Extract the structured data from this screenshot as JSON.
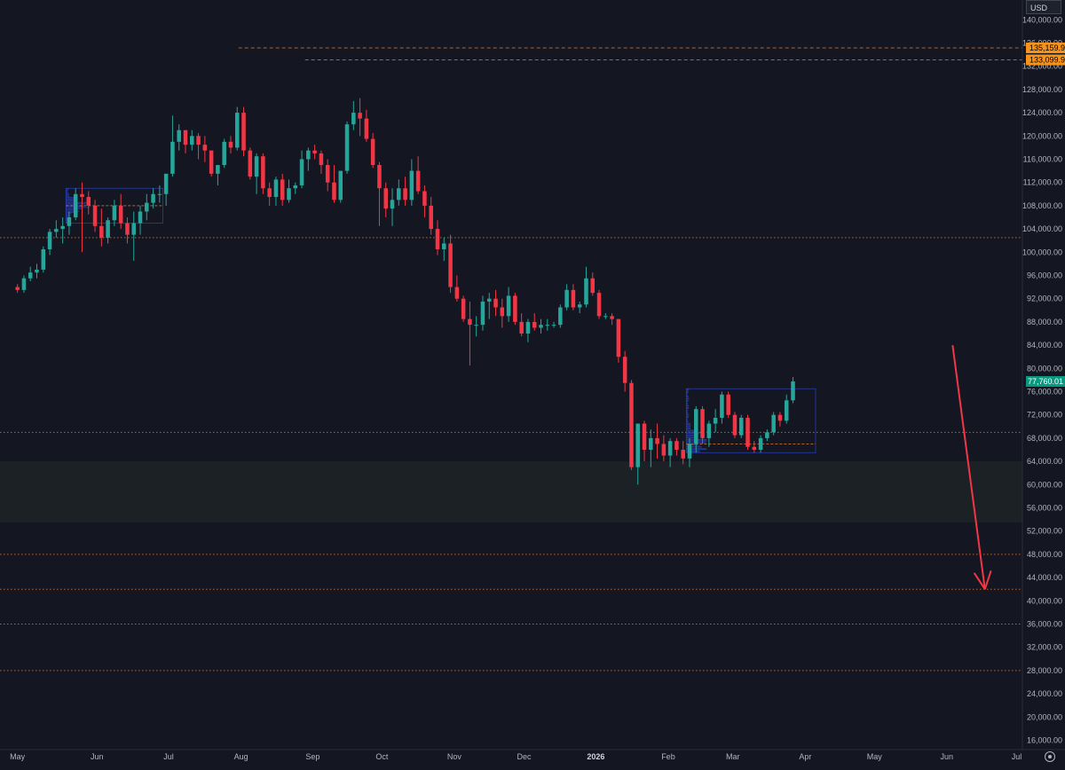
{
  "currency": "USD",
  "colors": {
    "background": "#141722",
    "up": "#26a69a",
    "down": "#f23645",
    "level": "#d3753a",
    "profile": "#2a3fbf",
    "arrow": "#f23645",
    "zone": "#1b2125",
    "price_tag": "#089981",
    "alert_tag": "#f7931a"
  },
  "icons": [
    "settings-icon",
    "down-arrow-icon"
  ],
  "chart_data": {
    "type": "candlestick",
    "grid": false,
    "y_range": [
      14400,
      143400
    ],
    "y_ticks": [
      {
        "v": 140000,
        "label": "140,000.00"
      },
      {
        "v": 136000,
        "label": "136,000.00"
      },
      {
        "v": 132000,
        "label": "132,000.00"
      },
      {
        "v": 128000,
        "label": "128,000.00"
      },
      {
        "v": 124000,
        "label": "124,000.00"
      },
      {
        "v": 120000,
        "label": "120,000.00"
      },
      {
        "v": 116000,
        "label": "116,000.00"
      },
      {
        "v": 112000,
        "label": "112,000.00"
      },
      {
        "v": 108000,
        "label": "108,000.00"
      },
      {
        "v": 104000,
        "label": "104,000.00"
      },
      {
        "v": 100000,
        "label": "100,000.00"
      },
      {
        "v": 96000,
        "label": "96,000.00"
      },
      {
        "v": 92000,
        "label": "92,000.00"
      },
      {
        "v": 88000,
        "label": "88,000.00"
      },
      {
        "v": 84000,
        "label": "84,000.00"
      },
      {
        "v": 80000,
        "label": "80,000.00"
      },
      {
        "v": 76000,
        "label": "76,000.00"
      },
      {
        "v": 72000,
        "label": "72,000.00"
      },
      {
        "v": 68000,
        "label": "68,000.00"
      },
      {
        "v": 64000,
        "label": "64,000.00"
      },
      {
        "v": 60000,
        "label": "60,000.00"
      },
      {
        "v": 56000,
        "label": "56,000.00"
      },
      {
        "v": 52000,
        "label": "52,000.00"
      },
      {
        "v": 48000,
        "label": "48,000.00"
      },
      {
        "v": 44000,
        "label": "44,000.00"
      },
      {
        "v": 40000,
        "label": "40,000.00"
      },
      {
        "v": 36000,
        "label": "36,000.00"
      },
      {
        "v": 32000,
        "label": "32,000.00"
      },
      {
        "v": 28000,
        "label": "28,000.00"
      },
      {
        "v": 24000,
        "label": "24,000.00"
      },
      {
        "v": 20000,
        "label": "20,000.00"
      },
      {
        "v": 16000,
        "label": "16,000.00"
      }
    ],
    "x_ticks": [
      {
        "label": "May",
        "week": 0
      },
      {
        "label": "Jun",
        "week": 12.3
      },
      {
        "label": "Jul",
        "week": 23.4
      },
      {
        "label": "Aug",
        "week": 34.6
      },
      {
        "label": "Sep",
        "week": 45.7
      },
      {
        "label": "Oct",
        "week": 56.4
      },
      {
        "label": "Nov",
        "week": 67.6
      },
      {
        "label": "Dec",
        "week": 78.4
      },
      {
        "label": "2026",
        "week": 89.5,
        "bold": true
      },
      {
        "label": "Feb",
        "week": 100.7
      },
      {
        "label": "Mar",
        "week": 110.7
      },
      {
        "label": "Apr",
        "week": 121.9
      },
      {
        "label": "May",
        "week": 132.6
      },
      {
        "label": "Jun",
        "week": 143.8
      },
      {
        "label": "Jul",
        "week": 154.6
      }
    ],
    "x_domain": [
      -2.7,
      155.5
    ],
    "candles": [
      [
        0,
        94000,
        94500,
        93000,
        93500
      ],
      [
        1,
        93500,
        96000,
        93000,
        95500
      ],
      [
        2,
        95500,
        97500,
        95000,
        96500
      ],
      [
        3,
        96500,
        98000,
        95500,
        97000
      ],
      [
        4,
        97000,
        101000,
        96500,
        100500
      ],
      [
        5,
        100500,
        104000,
        99500,
        103500
      ],
      [
        6,
        103500,
        105500,
        102500,
        104000
      ],
      [
        7,
        104000,
        106000,
        101500,
        104500
      ],
      [
        8,
        104500,
        107000,
        103000,
        106000
      ],
      [
        9,
        106000,
        111000,
        105500,
        110000
      ],
      [
        10,
        110000,
        112000,
        100000,
        109500
      ],
      [
        11,
        109500,
        110500,
        106500,
        108000
      ],
      [
        12,
        108000,
        109000,
        103500,
        104500
      ],
      [
        13,
        104500,
        107500,
        101000,
        102500
      ],
      [
        14,
        102500,
        106000,
        101500,
        105500
      ],
      [
        15,
        105500,
        109000,
        104500,
        108000
      ],
      [
        16,
        108000,
        110000,
        104000,
        105000
      ],
      [
        17,
        105000,
        106000,
        101500,
        103000
      ],
      [
        18,
        103000,
        107000,
        98500,
        105000
      ],
      [
        19,
        105000,
        108000,
        103000,
        107000
      ],
      [
        20,
        107000,
        110000,
        105500,
        108500
      ],
      [
        21,
        108500,
        111000,
        107500,
        110000
      ],
      [
        22,
        110000,
        111500,
        108500,
        110000
      ],
      [
        23,
        110000,
        113500,
        108000,
        113500
      ],
      [
        24,
        113500,
        123500,
        113000,
        119000
      ],
      [
        25,
        119000,
        122000,
        117500,
        121000
      ],
      [
        26,
        121000,
        121000,
        117000,
        118500
      ],
      [
        27,
        118500,
        121000,
        117500,
        120000
      ],
      [
        28,
        120000,
        120500,
        116000,
        118500
      ],
      [
        29,
        118500,
        120000,
        115500,
        117500
      ],
      [
        30,
        117500,
        117500,
        113000,
        113500
      ],
      [
        31,
        113500,
        115000,
        111500,
        115000
      ],
      [
        32,
        115000,
        119500,
        114500,
        119000
      ],
      [
        33,
        119000,
        120000,
        117000,
        118000
      ],
      [
        34,
        118000,
        125000,
        117500,
        124000
      ],
      [
        35,
        124000,
        125000,
        116500,
        117500
      ],
      [
        36,
        117500,
        118000,
        112500,
        113000
      ],
      [
        37,
        113000,
        117000,
        110000,
        116500
      ],
      [
        38,
        116500,
        117000,
        110000,
        111000
      ],
      [
        39,
        111000,
        112000,
        108000,
        109500
      ],
      [
        40,
        109500,
        113000,
        108000,
        112500
      ],
      [
        41,
        112500,
        113500,
        108000,
        109000
      ],
      [
        42,
        109000,
        112500,
        108500,
        111000
      ],
      [
        43,
        111000,
        112000,
        110000,
        111500
      ],
      [
        44,
        111500,
        117500,
        111000,
        116000
      ],
      [
        45,
        116000,
        118000,
        114000,
        117500
      ],
      [
        46,
        117500,
        118500,
        116000,
        117000
      ],
      [
        47,
        117000,
        117500,
        113500,
        115000
      ],
      [
        48,
        115000,
        116000,
        110500,
        112000
      ],
      [
        49,
        112000,
        115000,
        108500,
        109000
      ],
      [
        50,
        109000,
        114000,
        108500,
        114000
      ],
      [
        51,
        114000,
        122500,
        113500,
        122000
      ],
      [
        52,
        122000,
        126000,
        121000,
        124000
      ],
      [
        53,
        124000,
        126500,
        120000,
        123000
      ],
      [
        54,
        123000,
        124500,
        119000,
        119500
      ],
      [
        55,
        119500,
        120500,
        114500,
        115000
      ],
      [
        56,
        115000,
        115500,
        104500,
        111000
      ],
      [
        57,
        111000,
        112000,
        106000,
        107500
      ],
      [
        58,
        107500,
        111000,
        104500,
        109000
      ],
      [
        59,
        109000,
        112500,
        108000,
        111000
      ],
      [
        60,
        111000,
        113000,
        108000,
        109000
      ],
      [
        61,
        109000,
        116000,
        108000,
        114000
      ],
      [
        62,
        114000,
        116500,
        110000,
        110500
      ],
      [
        63,
        110500,
        111500,
        106000,
        108000
      ],
      [
        64,
        108000,
        109500,
        103000,
        104000
      ],
      [
        65,
        104000,
        105500,
        99500,
        100500
      ],
      [
        66,
        100500,
        102500,
        98500,
        101500
      ],
      [
        67,
        101500,
        103000,
        93000,
        94000
      ],
      [
        68,
        94000,
        96000,
        91500,
        92000
      ],
      [
        69,
        92000,
        92500,
        88000,
        88500
      ],
      [
        70,
        88500,
        91500,
        80500,
        87500
      ],
      [
        71,
        87500,
        89000,
        85500,
        87500
      ],
      [
        72,
        87500,
        92500,
        86500,
        91500
      ],
      [
        73,
        91500,
        93000,
        88500,
        92000
      ],
      [
        74,
        92000,
        93500,
        89000,
        90500
      ],
      [
        75,
        90500,
        92000,
        87000,
        89000
      ],
      [
        76,
        89000,
        94000,
        88000,
        92500
      ],
      [
        77,
        92500,
        93000,
        87500,
        88000
      ],
      [
        78,
        88000,
        89500,
        85500,
        86000
      ],
      [
        79,
        86000,
        88500,
        84500,
        88000
      ],
      [
        80,
        88000,
        89500,
        86500,
        87000
      ],
      [
        81,
        87000,
        88500,
        86000,
        87500
      ],
      [
        82,
        87500,
        88500,
        86500,
        87500
      ],
      [
        83,
        87500,
        88000,
        87000,
        87500
      ],
      [
        84,
        87500,
        91000,
        87000,
        90500
      ],
      [
        85,
        90500,
        94500,
        90000,
        93500
      ],
      [
        86,
        93500,
        94500,
        90000,
        90500
      ],
      [
        87,
        90500,
        91500,
        89500,
        91000
      ],
      [
        88,
        91000,
        97500,
        90500,
        95500
      ],
      [
        89,
        95500,
        96500,
        92500,
        93000
      ],
      [
        90,
        93000,
        93500,
        88500,
        89000
      ],
      [
        91,
        89000,
        89500,
        88500,
        89000
      ],
      [
        92,
        89000,
        89500,
        87500,
        88500
      ],
      [
        93,
        88500,
        88500,
        81000,
        82000
      ],
      [
        94,
        82000,
        83000,
        76000,
        77500
      ],
      [
        95,
        77500,
        78000,
        62500,
        63000
      ],
      [
        96,
        63000,
        70500,
        60000,
        70500
      ],
      [
        97,
        70500,
        71000,
        64000,
        66000
      ],
      [
        98,
        66000,
        69500,
        63000,
        68000
      ],
      [
        99,
        68000,
        70500,
        64500,
        67000
      ],
      [
        100,
        67000,
        68500,
        64000,
        65000
      ],
      [
        101,
        65000,
        68000,
        63000,
        67500
      ],
      [
        102,
        67500,
        68000,
        65000,
        66000
      ],
      [
        103,
        66000,
        67500,
        63500,
        64500
      ],
      [
        104,
        64500,
        68000,
        63000,
        67000
      ],
      [
        105,
        67000,
        73500,
        65500,
        73000
      ],
      [
        106,
        73000,
        73500,
        67000,
        68000
      ],
      [
        107,
        68000,
        71000,
        66500,
        70500
      ],
      [
        108,
        70500,
        73000,
        69000,
        71500
      ],
      [
        109,
        71500,
        76000,
        70500,
        75500
      ],
      [
        110,
        75500,
        76000,
        71500,
        72000
      ],
      [
        111,
        72000,
        72500,
        68000,
        68500
      ],
      [
        112,
        68500,
        72000,
        68000,
        71500
      ],
      [
        113,
        71500,
        72000,
        66000,
        66500
      ],
      [
        114,
        66500,
        67500,
        65500,
        66000
      ],
      [
        115,
        66000,
        68500,
        65500,
        68000
      ],
      [
        116,
        68000,
        69500,
        67500,
        69000
      ],
      [
        117,
        69000,
        72500,
        68500,
        72000
      ],
      [
        118,
        72000,
        72500,
        70000,
        71000
      ],
      [
        119,
        71000,
        75500,
        70500,
        74500
      ],
      [
        120,
        74500,
        78500,
        74000,
        77760
      ]
    ],
    "level_lines": [
      102500,
      69000,
      48000,
      42000,
      36000,
      28000
    ],
    "alert_lines": [
      {
        "value": 135159.9,
        "label": "135,159.90"
      },
      {
        "value": 133099.9,
        "label": "133,099.90"
      }
    ],
    "zone": [
      53500,
      64000
    ],
    "last_price": {
      "value": 77760.01,
      "label": "77,760.01"
    },
    "arrow": {
      "from": [
        144.7,
        84000
      ],
      "to": [
        149.7,
        42000
      ]
    }
  }
}
